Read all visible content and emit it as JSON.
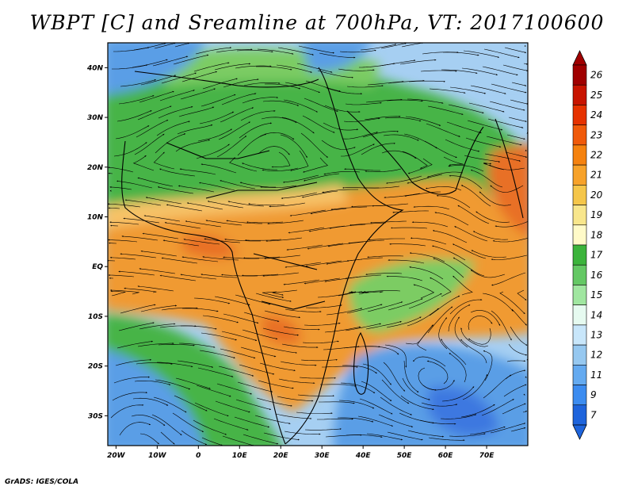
{
  "title": "WBPT [C] and Sreamline at 700hPa, VT: 2017100600",
  "footer": "GrADS: IGES/COLA",
  "map": {
    "lon_range": [
      -22,
      80
    ],
    "lat_range": [
      -36,
      45
    ],
    "lat_ticks": [
      {
        "value": 40,
        "label": "40N"
      },
      {
        "value": 30,
        "label": "30N"
      },
      {
        "value": 20,
        "label": "20N"
      },
      {
        "value": 10,
        "label": "10N"
      },
      {
        "value": 0,
        "label": "EQ"
      },
      {
        "value": -10,
        "label": "10S"
      },
      {
        "value": -20,
        "label": "20S"
      },
      {
        "value": -30,
        "label": "30S"
      }
    ],
    "lon_ticks": [
      {
        "value": -20,
        "label": "20W"
      },
      {
        "value": -10,
        "label": "10W"
      },
      {
        "value": 0,
        "label": "0"
      },
      {
        "value": 10,
        "label": "10E"
      },
      {
        "value": 20,
        "label": "20E"
      },
      {
        "value": 30,
        "label": "30E"
      },
      {
        "value": 40,
        "label": "40E"
      },
      {
        "value": 50,
        "label": "50E"
      },
      {
        "value": 60,
        "label": "60E"
      },
      {
        "value": 70,
        "label": "70E"
      }
    ]
  },
  "colorbar": {
    "labels": [
      "26",
      "25",
      "24",
      "23",
      "22",
      "21",
      "20",
      "19",
      "18",
      "17",
      "16",
      "15",
      "14",
      "13",
      "12",
      "11",
      "9",
      "7"
    ],
    "colors": [
      "#a00000",
      "#c81400",
      "#e63200",
      "#f05a0a",
      "#f5820f",
      "#f7a22a",
      "#f5c64a",
      "#f8e68c",
      "#fffac8",
      "#3cb43c",
      "#64c864",
      "#a0e6a0",
      "#e6faf0",
      "#c8e6fa",
      "#96c8f0",
      "#64aaf0",
      "#3c8cf0",
      "#1e64dc"
    ]
  },
  "colors": {
    "warm_core": "#e87028",
    "orange": "#f09a30",
    "light_orange": "#f6c268",
    "green": "#46b446",
    "light_green": "#7ccc64",
    "blue": "#5a9ee6",
    "light_blue": "#a6cff2"
  }
}
